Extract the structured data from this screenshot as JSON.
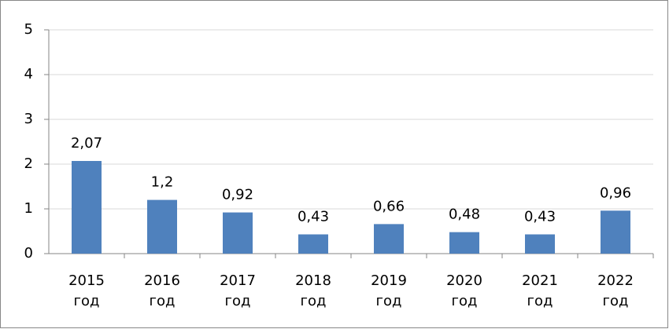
{
  "chart_data": {
    "type": "bar",
    "categories": [
      "2015 год",
      "2016 год",
      "2017 год",
      "2018 год",
      "2019 год",
      "2020 год",
      "2021 год",
      "2022 год"
    ],
    "values": [
      2.07,
      1.2,
      0.92,
      0.43,
      0.66,
      0.48,
      0.43,
      0.96
    ],
    "value_labels": [
      "2,07",
      "1,2",
      "0,92",
      "0,43",
      "0,66",
      "0,48",
      "0,43",
      "0,96"
    ],
    "color": "#4f81bd",
    "ylim": [
      0,
      5
    ],
    "yticks": [
      0,
      1,
      2,
      3,
      4,
      5
    ],
    "grid": true
  }
}
